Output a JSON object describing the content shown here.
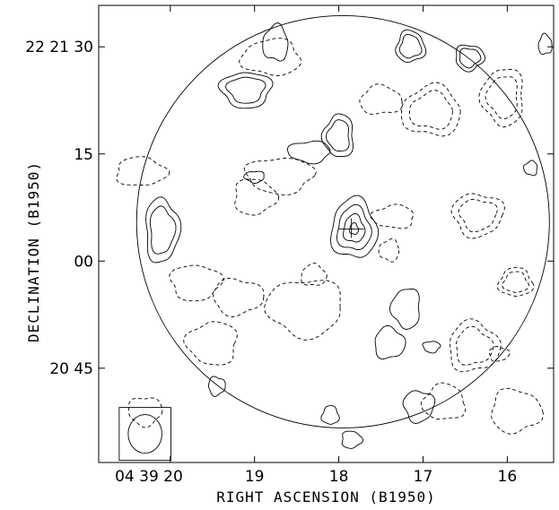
{
  "chart_data": {
    "type": "contour",
    "xlabel": "RIGHT ASCENSION (B1950)",
    "ylabel": "DECLINATION (B1950)",
    "x_ticks": [
      {
        "value": 20,
        "label": "04 39 20"
      },
      {
        "value": 19,
        "label": "19"
      },
      {
        "value": 18,
        "label": "18"
      },
      {
        "value": 17,
        "label": "17"
      },
      {
        "value": 16,
        "label": "16"
      }
    ],
    "y_ticks": [
      {
        "value": 30,
        "label": "22 21 30"
      },
      {
        "value": 15,
        "label": "15"
      },
      {
        "value": 0,
        "label": "00"
      },
      {
        "value": -15,
        "label": "20 45"
      }
    ],
    "x_unit": "seconds of RA (04h39m)",
    "y_unit": "arcsec offset from 22 21 00",
    "xlim": [
      20.85,
      15.45
    ],
    "ylim": [
      -28.2,
      35.8
    ],
    "primary_beam": {
      "center": [
        17.95,
        5.5
      ],
      "radius_ra_s": 2.45
    },
    "source_marker": {
      "ra_s": 17.85,
      "dec_s": 4.5
    },
    "contours_positive": [
      {
        "center": [
          17.82,
          4.5
        ],
        "rx": 0.27,
        "ry": 4.2,
        "levels": 4
      },
      {
        "center": [
          20.1,
          4.3
        ],
        "rx": 0.2,
        "ry": 4.5,
        "levels": 2
      },
      {
        "center": [
          19.1,
          24.0
        ],
        "rx": 0.3,
        "ry": 2.5,
        "levels": 2
      },
      {
        "center": [
          18.0,
          17.5
        ],
        "rx": 0.18,
        "ry": 3.0,
        "levels": 2
      },
      {
        "center": [
          17.15,
          30.0
        ],
        "rx": 0.17,
        "ry": 2.2,
        "levels": 2
      },
      {
        "center": [
          16.45,
          28.5
        ],
        "rx": 0.17,
        "ry": 1.8,
        "levels": 2
      },
      {
        "center": [
          18.35,
          15.3
        ],
        "rx": 0.25,
        "ry": 1.5,
        "levels": 1
      },
      {
        "center": [
          18.75,
          30.5
        ],
        "rx": 0.15,
        "ry": 2.5,
        "levels": 1
      },
      {
        "center": [
          17.4,
          -11.5
        ],
        "rx": 0.18,
        "ry": 2.2,
        "levels": 1
      },
      {
        "center": [
          17.05,
          -20.3
        ],
        "rx": 0.18,
        "ry": 2.2,
        "levels": 1
      },
      {
        "center": [
          17.2,
          -6.6
        ],
        "rx": 0.17,
        "ry": 2.8,
        "levels": 1
      },
      {
        "center": [
          18.1,
          -21.6
        ],
        "rx": 0.1,
        "ry": 1.3,
        "levels": 1
      },
      {
        "center": [
          17.85,
          -25.0
        ],
        "rx": 0.12,
        "ry": 1.2,
        "levels": 1
      },
      {
        "center": [
          16.9,
          -12.0
        ],
        "rx": 0.1,
        "ry": 0.8,
        "levels": 1
      },
      {
        "center": [
          15.72,
          13.0
        ],
        "rx": 0.08,
        "ry": 1.0,
        "levels": 1
      },
      {
        "center": [
          15.55,
          30.3
        ],
        "rx": 0.08,
        "ry": 1.4,
        "levels": 1
      },
      {
        "center": [
          19.45,
          -17.5
        ],
        "rx": 0.1,
        "ry": 1.3,
        "levels": 1
      },
      {
        "center": [
          19.0,
          11.8
        ],
        "rx": 0.12,
        "ry": 0.8,
        "levels": 1
      }
    ],
    "contours_negative": [
      {
        "center": [
          16.9,
          21.0
        ],
        "rx": 0.35,
        "ry": 3.5,
        "levels": 2
      },
      {
        "center": [
          16.4,
          -12.0
        ],
        "rx": 0.3,
        "ry": 3.5,
        "levels": 2
      },
      {
        "center": [
          16.35,
          6.5
        ],
        "rx": 0.3,
        "ry": 3.0,
        "levels": 2
      },
      {
        "center": [
          16.05,
          23.0
        ],
        "rx": 0.25,
        "ry": 4.0,
        "levels": 2
      },
      {
        "center": [
          15.9,
          -3.0
        ],
        "rx": 0.2,
        "ry": 2.0,
        "levels": 2
      },
      {
        "center": [
          19.0,
          9.0
        ],
        "rx": 0.25,
        "ry": 2.5,
        "levels": 1
      },
      {
        "center": [
          18.7,
          12.0
        ],
        "rx": 0.4,
        "ry": 2.5,
        "levels": 1
      },
      {
        "center": [
          17.35,
          6.2
        ],
        "rx": 0.25,
        "ry": 1.6,
        "levels": 1
      },
      {
        "center": [
          17.5,
          22.5
        ],
        "rx": 0.25,
        "ry": 2.0,
        "levels": 1
      },
      {
        "center": [
          19.2,
          -5.0
        ],
        "rx": 0.3,
        "ry": 2.5,
        "levels": 1
      },
      {
        "center": [
          18.4,
          -6.5
        ],
        "rx": 0.45,
        "ry": 4.0,
        "levels": 1
      },
      {
        "center": [
          18.8,
          28.5
        ],
        "rx": 0.35,
        "ry": 2.5,
        "levels": 1
      },
      {
        "center": [
          20.35,
          12.5
        ],
        "rx": 0.3,
        "ry": 2.0,
        "levels": 1
      },
      {
        "center": [
          19.7,
          -3.0
        ],
        "rx": 0.3,
        "ry": 2.5,
        "levels": 1
      },
      {
        "center": [
          19.5,
          -11.5
        ],
        "rx": 0.3,
        "ry": 3.0,
        "levels": 1
      },
      {
        "center": [
          16.75,
          -19.8
        ],
        "rx": 0.25,
        "ry": 2.5,
        "levels": 1
      },
      {
        "center": [
          15.9,
          -21.0
        ],
        "rx": 0.3,
        "ry": 3.0,
        "levels": 1
      },
      {
        "center": [
          20.3,
          -21.0
        ],
        "rx": 0.2,
        "ry": 2.0,
        "levels": 1
      },
      {
        "center": [
          17.4,
          1.5
        ],
        "rx": 0.12,
        "ry": 1.5,
        "levels": 1
      },
      {
        "center": [
          18.3,
          -2.0
        ],
        "rx": 0.15,
        "ry": 1.5,
        "levels": 1
      },
      {
        "center": [
          16.1,
          -13.0
        ],
        "rx": 0.12,
        "ry": 1.0,
        "levels": 1
      }
    ],
    "beam": {
      "center": [
        20.3,
        -24.2
      ],
      "rx": 0.2,
      "ry": 2.7
    }
  }
}
